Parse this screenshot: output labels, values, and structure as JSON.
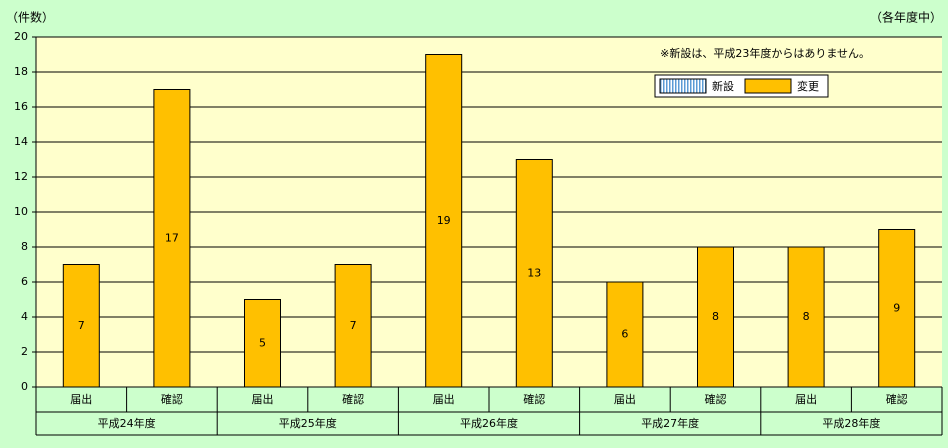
{
  "chart_data": {
    "type": "bar",
    "stacked": true,
    "y_label": "（件数）",
    "note_right": "（各年度中）",
    "annotation": "※新設は、平成23年度からはありません。",
    "categories": [
      "届出",
      "確認",
      "届出",
      "確認",
      "届出",
      "確認",
      "届出",
      "確認",
      "届出",
      "確認"
    ],
    "groups": [
      "平成24年度",
      "平成25年度",
      "平成26年度",
      "平成27年度",
      "平成28年度"
    ],
    "series": [
      {
        "name": "新設",
        "color": "#9dc3e6",
        "values": [
          0,
          0,
          0,
          0,
          0,
          0,
          0,
          0,
          0,
          0
        ]
      },
      {
        "name": "変更",
        "color": "#ffc000",
        "values": [
          7,
          17,
          5,
          7,
          19,
          13,
          6,
          8,
          8,
          9
        ]
      }
    ],
    "ylim": [
      0,
      20
    ],
    "yticks": [
      0,
      2,
      4,
      6,
      8,
      10,
      12,
      14,
      16,
      18,
      20
    ],
    "grid": true
  }
}
